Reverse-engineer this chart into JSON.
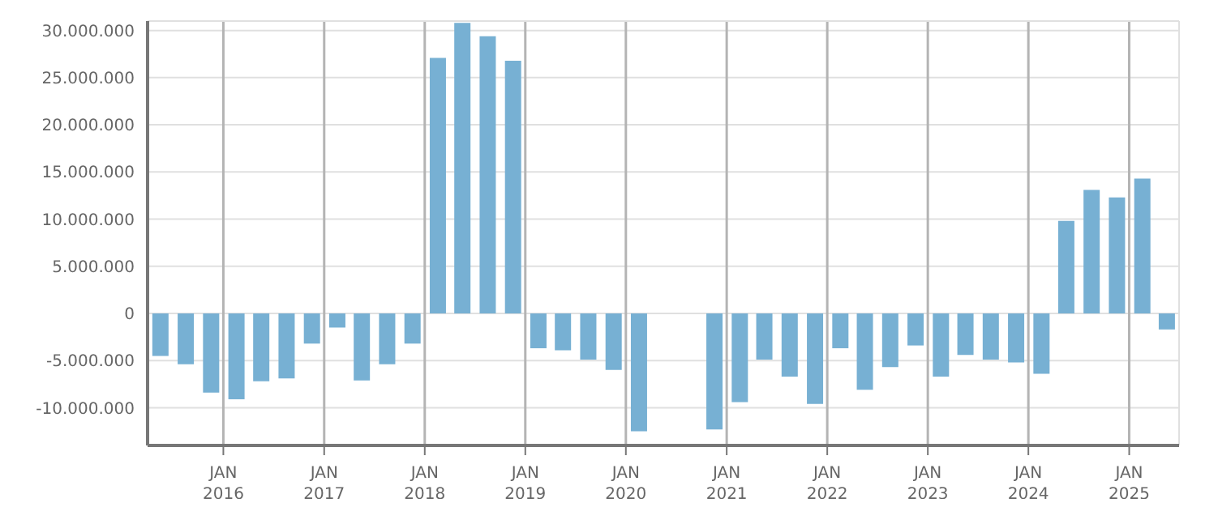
{
  "chart_data": {
    "type": "bar",
    "color": "#77b0d3",
    "x": [
      "2015-05-15",
      "2015-08-15",
      "2015-11-15",
      "2016-02-15",
      "2016-05-15",
      "2016-08-15",
      "2016-11-15",
      "2017-02-15",
      "2017-05-15",
      "2017-08-15",
      "2017-11-15",
      "2018-02-15",
      "2018-05-15",
      "2018-08-15",
      "2018-11-15",
      "2019-02-15",
      "2019-05-15",
      "2019-08-15",
      "2019-11-15",
      "2020-02-15",
      "2020-05-15",
      "2020-08-15",
      "2020-11-15",
      "2021-02-15",
      "2021-05-15",
      "2021-08-15",
      "2021-11-15",
      "2022-02-15",
      "2022-05-15",
      "2022-08-15",
      "2022-11-15",
      "2023-02-15",
      "2023-05-15",
      "2023-08-15",
      "2023-11-15",
      "2024-02-15",
      "2024-05-15",
      "2024-08-15",
      "2024-11-15",
      "2025-02-15",
      "2025-05-15"
    ],
    "values": [
      -4500000,
      -5400000,
      -8400000,
      -9100000,
      -7200000,
      -6900000,
      -3200000,
      -1500000,
      -7100000,
      -5400000,
      -3200000,
      27100000,
      30800000,
      29400000,
      26800000,
      -3700000,
      -3900000,
      -4900000,
      -6000000,
      -12500000,
      null,
      null,
      -12300000,
      -9400000,
      -4900000,
      -6700000,
      -9600000,
      -3700000,
      -8100000,
      -5700000,
      -3400000,
      -6700000,
      -4400000,
      -4900000,
      -5200000,
      -6400000,
      9800000,
      13100000,
      12300000,
      14300000,
      -1700000
    ],
    "xlim": [
      "2015-04-01",
      "2025-07-01"
    ],
    "xticks": [
      {
        "value": "2016-01-01",
        "label": "JAN 2016"
      },
      {
        "value": "2017-01-01",
        "label": "JAN 2017"
      },
      {
        "value": "2018-01-01",
        "label": "JAN 2018"
      },
      {
        "value": "2019-01-01",
        "label": "JAN 2019"
      },
      {
        "value": "2020-01-01",
        "label": "JAN 2020"
      },
      {
        "value": "2021-01-01",
        "label": "JAN 2021"
      },
      {
        "value": "2022-01-01",
        "label": "JAN 2022"
      },
      {
        "value": "2023-01-01",
        "label": "JAN 2023"
      },
      {
        "value": "2024-01-01",
        "label": "JAN 2024"
      },
      {
        "value": "2025-01-01",
        "label": "JAN 2025"
      }
    ],
    "ylim": [
      -14000000,
      31000000
    ],
    "yticks": [
      {
        "value": -10000000,
        "label": "-10.000.000"
      },
      {
        "value": -5000000,
        "label": "-5.000.000"
      },
      0,
      {
        "value": 5000000,
        "label": "5.000.000"
      },
      {
        "value": 10000000,
        "label": "10.000.000"
      },
      {
        "value": 15000000,
        "label": "15.000.000"
      },
      {
        "value": 20000000,
        "label": "20.000.000"
      },
      {
        "value": 25000000,
        "label": "25.000.000"
      },
      {
        "value": 30000000,
        "label": "30.000.000"
      }
    ],
    "grid": true
  }
}
